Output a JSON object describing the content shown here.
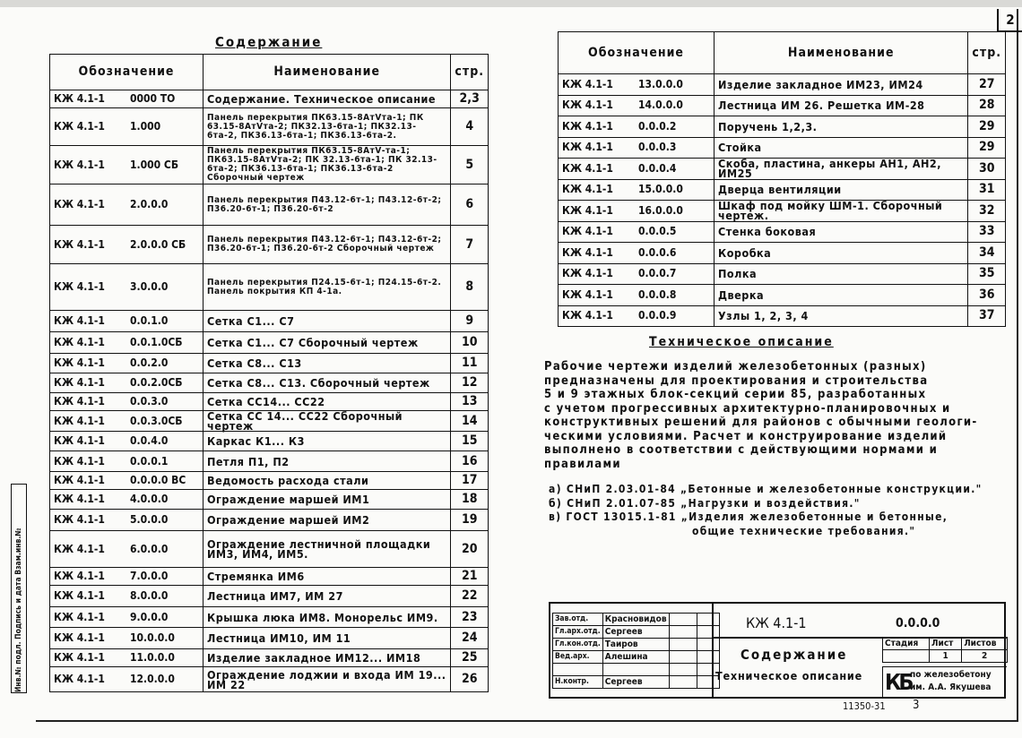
{
  "sheet_number": "2",
  "left_table": {
    "title": "Содержание",
    "headers": {
      "designation": "Обозначение",
      "name": "Наименование",
      "page": "стр."
    },
    "rows": [
      {
        "code": "КЖ 4.1-1",
        "num": "0000 ТО",
        "name": "Содержание. Техническое описание",
        "page": "2,3"
      },
      {
        "code": "КЖ 4.1-1",
        "num": "1.000",
        "name": "Панель перекрытия ПК63.15-8АтⅤта-1; ПК 63.15-8АтⅤта-2; ПК32.13-6та-1; ПК32.13-6та-2, ПК36.13-6та-1; ПК36.13-6та-2.",
        "page": "4"
      },
      {
        "code": "КЖ 4.1-1",
        "num": "1.000 СБ",
        "name": "Панель перекрытия ПК63.15-8АтⅤ-та-1; ПК63.15-8АтⅤта-2; ПК 32.13-6та-1; ПК 32.13-6та-2; ПК36.13-6та-1; ПК36.13-6та-2 Сборочный чертеж",
        "page": "5"
      },
      {
        "code": "КЖ 4.1-1",
        "num": "2.0.0.0",
        "name": "Панель перекрытия П43.12-6т-1; П43.12-6т-2; П36.20-6т-1; П36.20-6т-2",
        "page": "6"
      },
      {
        "code": "КЖ 4.1-1",
        "num": "2.0.0.0 СБ",
        "name": "Панель перекрытия П43.12-6т-1; П43.12-6т-2; П36.20-6т-1; П36.20-6т-2 Сборочный чертеж",
        "page": "7"
      },
      {
        "code": "КЖ 4.1-1",
        "num": "3.0.0.0",
        "name": "Панель перекрытия П24.15-6т-1; П24.15-6т-2. Панель покрытия КП 4-1а.",
        "page": "8"
      },
      {
        "code": "КЖ 4.1-1",
        "num": "0.0.1.0",
        "name": "Сетка С1... С7",
        "page": "9"
      },
      {
        "code": "КЖ 4.1-1",
        "num": "0.0.1.0СБ",
        "name": "Сетка С1... С7 Сборочный чертеж",
        "page": "10"
      },
      {
        "code": "КЖ 4.1-1",
        "num": "0.0.2.0",
        "name": "Сетка С8... С13",
        "page": "11"
      },
      {
        "code": "КЖ 4.1-1",
        "num": "0.0.2.0СБ",
        "name": "Сетка С8... С13. Сборочный чертеж",
        "page": "12"
      },
      {
        "code": "КЖ 4.1-1",
        "num": "0.0.3.0",
        "name": "Сетка СС14... СС22",
        "page": "13"
      },
      {
        "code": "КЖ 4.1-1",
        "num": "0.0.3.0СБ",
        "name": "Сетка СС 14... СС22 Сборочный чертеж",
        "page": "14"
      },
      {
        "code": "КЖ 4.1-1",
        "num": "0.0.4.0",
        "name": "Каркас К1... К3",
        "page": "15"
      },
      {
        "code": "КЖ 4.1-1",
        "num": "0.0.0.1",
        "name": "Петля П1, П2",
        "page": "16"
      },
      {
        "code": "КЖ 4.1-1",
        "num": "0.0.0.0 ВС",
        "name": "Ведомость расхода стали",
        "page": "17"
      },
      {
        "code": "КЖ 4.1-1",
        "num": "4.0.0.0",
        "name": "Ограждение маршей ИМ1",
        "page": "18"
      },
      {
        "code": "КЖ 4.1-1",
        "num": "5.0.0.0",
        "name": "Ограждение маршей ИМ2",
        "page": "19"
      },
      {
        "code": "КЖ 4.1-1",
        "num": "6.0.0.0",
        "name": "Ограждение лестничной площадки ИМ3, ИМ4, ИМ5.",
        "page": "20"
      },
      {
        "code": "КЖ 4.1-1",
        "num": "7.0.0.0",
        "name": "Стремянка ИМ6",
        "page": "21"
      },
      {
        "code": "КЖ 4.1-1",
        "num": "8.0.0.0",
        "name": "Лестница ИМ7, ИМ 27",
        "page": "22"
      },
      {
        "code": "КЖ 4.1-1",
        "num": "9.0.0.0",
        "name": "Крышка люка ИМ8. Монорельс ИМ9.",
        "page": "23"
      },
      {
        "code": "КЖ 4.1-1",
        "num": "10.0.0.0",
        "name": "Лестница ИМ10, ИМ 11",
        "page": "24"
      },
      {
        "code": "КЖ 4.1-1",
        "num": "11.0.0.0",
        "name": "Изделие закладное ИМ12... ИМ18",
        "page": "25"
      },
      {
        "code": "КЖ 4.1-1",
        "num": "12.0.0.0",
        "name": "Ограждение лоджии и входа ИМ 19... ИМ 22",
        "page": "26"
      }
    ]
  },
  "right_table": {
    "headers": {
      "designation": "Обозначение",
      "name": "Наименование",
      "page": "стр."
    },
    "rows": [
      {
        "code": "КЖ 4.1-1",
        "num": "13.0.0.0",
        "name": "Изделие закладное ИМ23, ИМ24",
        "page": "27"
      },
      {
        "code": "КЖ 4.1-1",
        "num": "14.0.0.0",
        "name": "Лестница ИМ 26. Решетка ИМ-28",
        "page": "28"
      },
      {
        "code": "КЖ 4.1-1",
        "num": "0.0.0.2",
        "name": "Поручень 1,2,3.",
        "page": "29"
      },
      {
        "code": "КЖ 4.1-1",
        "num": "0.0.0.3",
        "name": "Стойка",
        "page": "29"
      },
      {
        "code": "КЖ 4.1-1",
        "num": "0.0.0.4",
        "name": "Скоба, пластина, анкеры АН1, АН2, ИМ25",
        "page": "30"
      },
      {
        "code": "КЖ 4.1-1",
        "num": "15.0.0.0",
        "name": "Дверца вентиляции",
        "page": "31"
      },
      {
        "code": "КЖ 4.1-1",
        "num": "16.0.0.0",
        "name": "Шкаф под мойку ШМ-1. Сборочный чертеж.",
        "page": "32"
      },
      {
        "code": "КЖ 4.1-1",
        "num": "0.0.0.5",
        "name": "Стенка боковая",
        "page": "33"
      },
      {
        "code": "КЖ 4.1-1",
        "num": "0.0.0.6",
        "name": "Коробка",
        "page": "34"
      },
      {
        "code": "КЖ 4.1-1",
        "num": "0.0.0.7",
        "name": "Полка",
        "page": "35"
      },
      {
        "code": "КЖ 4.1-1",
        "num": "0.0.0.8",
        "name": "Дверка",
        "page": "36"
      },
      {
        "code": "КЖ 4.1-1",
        "num": "0.0.0.9",
        "name": "Узлы 1, 2, 3, 4",
        "page": "37"
      }
    ]
  },
  "tech_description": {
    "title": "Техническое описание",
    "lines": [
      "Рабочие чертежи изделий железобетонных (разных)",
      "предназначены для проектирования и строительства",
      "5 и 9 этажных блок-секций серии 85, разработанных",
      "с учетом прогрессивных архитектурно-планировочных и",
      "конструктивных решений для районов с обычными геологи-",
      "ческими условиями. Расчет и конструирование изделий",
      "выполнено в соответствии с действующими нормами и",
      "правилами"
    ],
    "refs": [
      "а) СНиП 2.03.01-84 „Бетонные и железобетонные конструкции.\"",
      "б) СНиП 2.01.07-85 „Нагрузки и воздействия.\"",
      "в) ГОСТ 13015.1-81 „Изделия железобетонные и бетонные,",
      "общие технические требования.\""
    ]
  },
  "title_block": {
    "signatures": [
      {
        "role": "Зав.отд.",
        "name": "Красновидов"
      },
      {
        "role": "Гл.арх.отд.",
        "name": "Сергеев"
      },
      {
        "role": "Гл.кон.отд.",
        "name": "Таиров"
      },
      {
        "role": "Вед.арх.",
        "name": "Алешина"
      },
      {
        "role": "",
        "name": ""
      },
      {
        "role": "Н.контр.",
        "name": "Сергеев"
      }
    ],
    "code": "КЖ 4.1-1",
    "number": "0.0.0.0",
    "title1": "Содержание",
    "title2": "Техническое описание",
    "stage_label": "Стадия",
    "sheet_label": "Лист",
    "sheets_label": "Листов",
    "stage": "",
    "sheet": "1",
    "sheets": "2",
    "org_logo": "КБ",
    "org_line1": "по железобетону",
    "org_line2": "им. А.А. Якушева"
  },
  "footer": {
    "archive_number": "11350-31",
    "page": "3"
  },
  "side_stamp": "Инв.№ подл.  Подпись и дата  Взам.инв.№"
}
